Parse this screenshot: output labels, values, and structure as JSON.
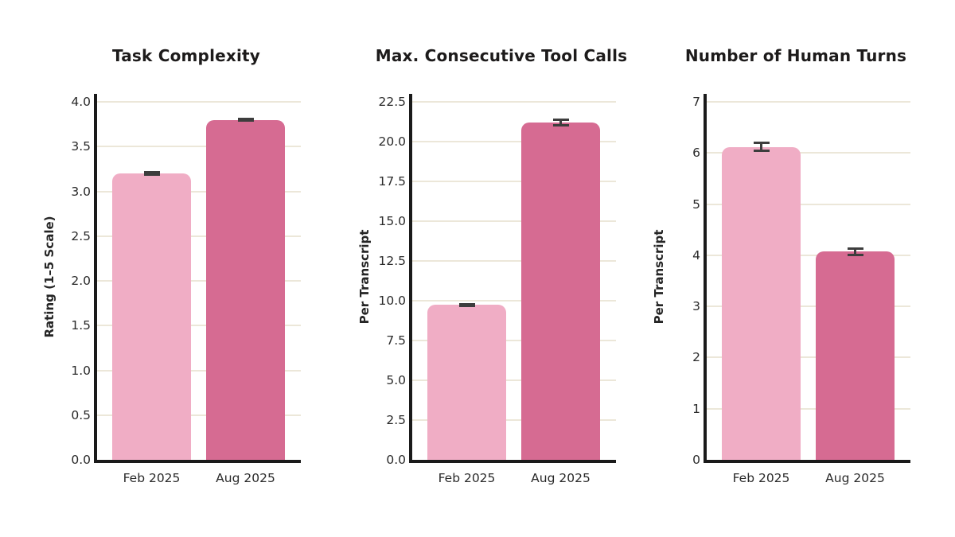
{
  "page": {
    "background": "#ffffff"
  },
  "colors": {
    "feb_2025_bar": "#f0adc5",
    "aug_2025_bar": "#d66b92",
    "error_bar": "#3d3d3d",
    "axis_spine": "#1a1a1a",
    "gridline": "#ece7d9",
    "text": "#2a2a2a"
  },
  "categories": [
    "Feb 2025",
    "Aug 2025"
  ],
  "chart_data": [
    {
      "type": "bar",
      "title": "Task Complexity",
      "xlabel": "",
      "ylabel": "Rating (1–5 Scale)",
      "categories": [
        "Feb 2025",
        "Aug 2025"
      ],
      "values": [
        3.2,
        3.8
      ],
      "errors": [
        0.01,
        0.01
      ],
      "ylim": [
        0,
        4.0
      ],
      "yticks": [
        0,
        0.5,
        1.0,
        1.5,
        2.0,
        2.5,
        3.0,
        3.5,
        4.0
      ],
      "ytick_labels": [
        "0.0",
        "0.5",
        "1.0",
        "1.5",
        "2.0",
        "2.5",
        "3.0",
        "3.5",
        "4.0"
      ],
      "grid": true,
      "legend": false
    },
    {
      "type": "bar",
      "title": "Max. Consecutive Tool Calls",
      "xlabel": "",
      "ylabel": "Per Transcript",
      "categories": [
        "Feb 2025",
        "Aug 2025"
      ],
      "values": [
        9.75,
        21.2
      ],
      "errors": [
        0.05,
        0.18
      ],
      "ylim": [
        0,
        22.5
      ],
      "yticks": [
        0,
        2.5,
        5.0,
        7.5,
        10.0,
        12.5,
        15.0,
        17.5,
        20.0,
        22.5
      ],
      "ytick_labels": [
        "0.0",
        "2.5",
        "5.0",
        "7.5",
        "10.0",
        "12.5",
        "15.0",
        "17.5",
        "20.0",
        "22.5"
      ],
      "grid": true,
      "legend": false
    },
    {
      "type": "bar",
      "title": "Number of Human Turns",
      "xlabel": "",
      "ylabel": "Per Transcript",
      "categories": [
        "Feb 2025",
        "Aug 2025"
      ],
      "values": [
        6.12,
        4.07
      ],
      "errors": [
        0.08,
        0.06
      ],
      "ylim": [
        0,
        7
      ],
      "yticks": [
        0,
        1,
        2,
        3,
        4,
        5,
        6,
        7
      ],
      "ytick_labels": [
        "0",
        "1",
        "2",
        "3",
        "4",
        "5",
        "6",
        "7"
      ],
      "grid": true,
      "legend": false
    }
  ]
}
